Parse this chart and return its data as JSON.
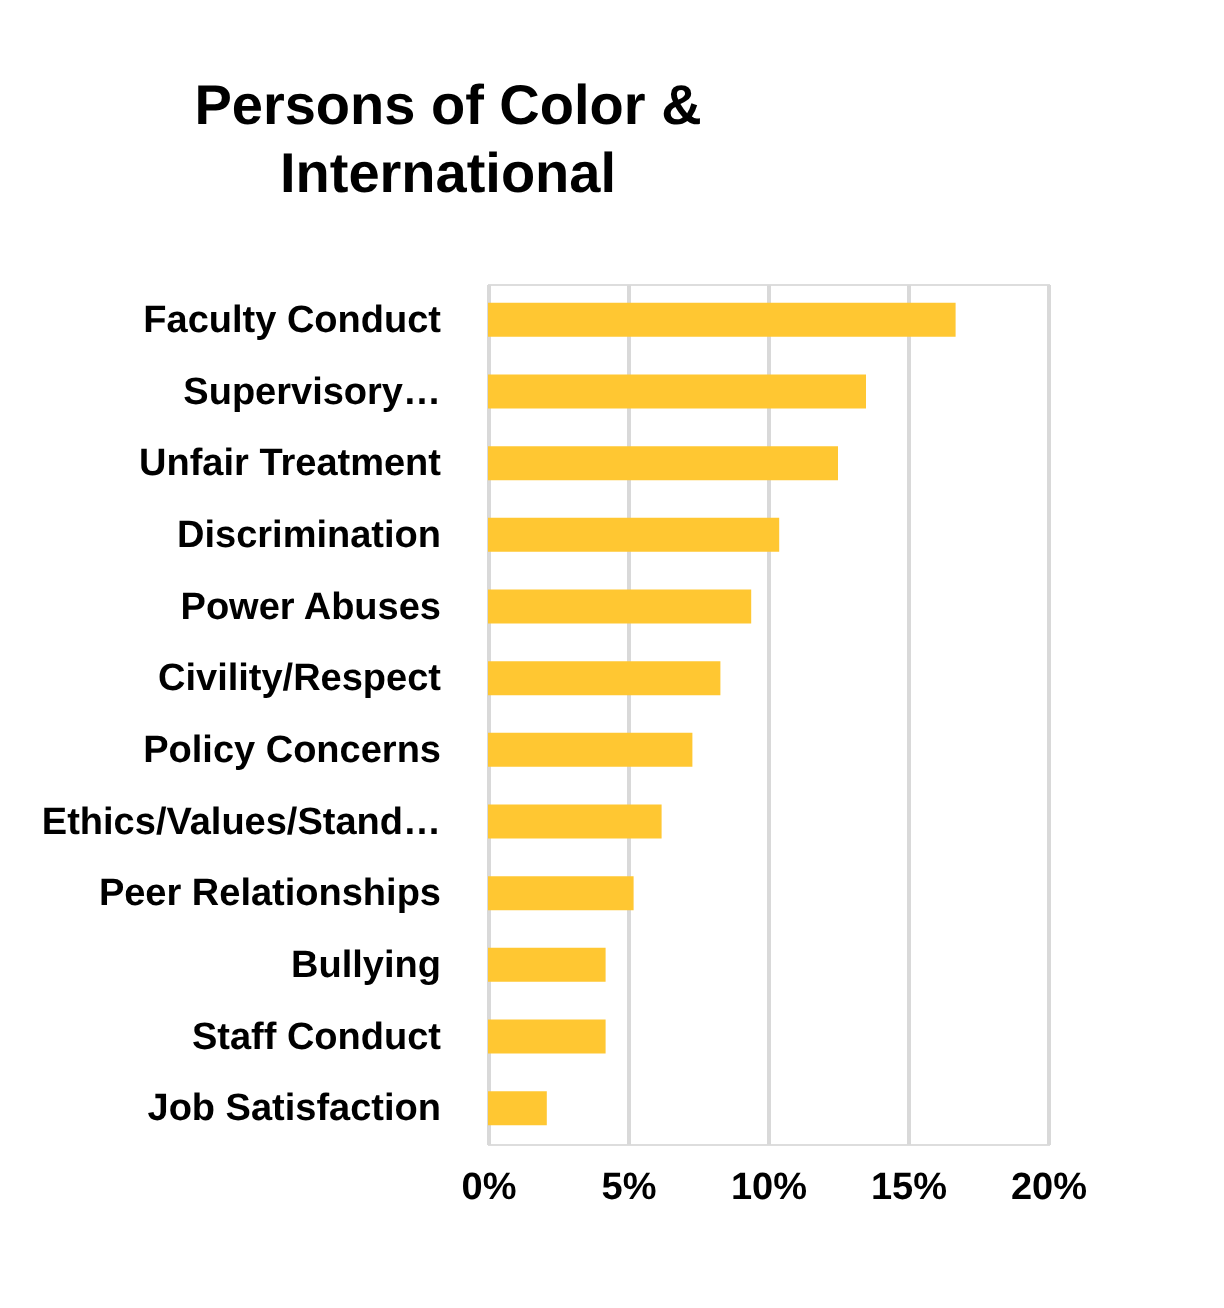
{
  "chart_data": {
    "type": "bar",
    "orientation": "horizontal",
    "title": [
      "Persons of Color &",
      "International"
    ],
    "categories": [
      "Faculty Conduct",
      "Supervisory…",
      "Unfair Treatment",
      "Discrimination",
      "Power Abuses",
      "Civility/Respect",
      "Policy Concerns",
      "Ethics/Values/Stand…",
      "Peer Relationships",
      "Bullying",
      "Staff Conduct",
      "Job Satisfaction"
    ],
    "values": [
      16.7,
      13.5,
      12.5,
      10.4,
      9.4,
      8.3,
      7.3,
      6.2,
      5.2,
      4.2,
      4.2,
      2.1
    ],
    "color": "#ffc732",
    "xlim": [
      0,
      20
    ],
    "xticks": [
      {
        "value": 0,
        "label": "0%"
      },
      {
        "value": 5,
        "label": "5%"
      },
      {
        "value": 10,
        "label": "10%"
      },
      {
        "value": 15,
        "label": "15%"
      },
      {
        "value": 20,
        "label": "20%"
      }
    ],
    "grid": "x"
  }
}
